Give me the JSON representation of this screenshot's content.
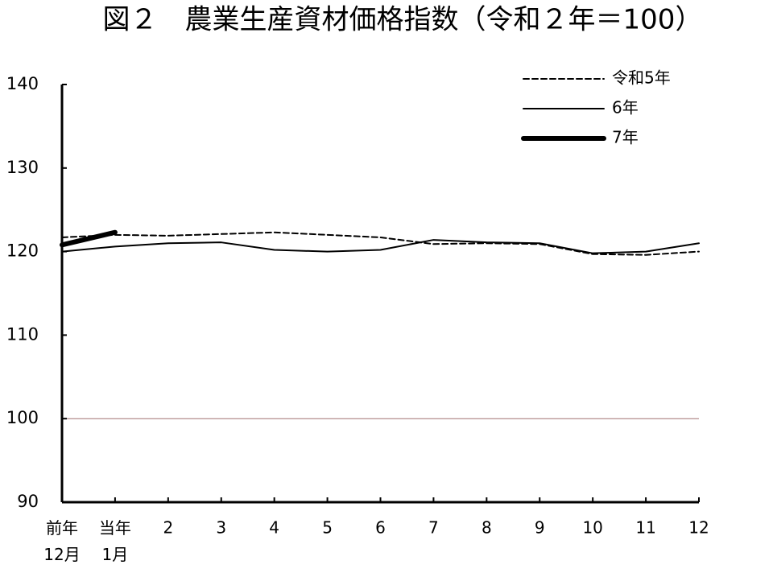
{
  "chart_data": {
    "type": "line",
    "title": "図２　農業生産資材価格指数（令和２年＝100）",
    "categories": [
      "前年\n12月",
      "当年\n1月",
      "2",
      "3",
      "4",
      "5",
      "6",
      "7",
      "8",
      "9",
      "10",
      "11",
      "12"
    ],
    "series": [
      {
        "name": "令和5年",
        "color": "#000000",
        "style": "dashed",
        "width": 2,
        "values": [
          121.7,
          122.0,
          121.9,
          122.1,
          122.3,
          122.0,
          121.7,
          120.9,
          121.0,
          120.9,
          119.7,
          119.6,
          120.0
        ]
      },
      {
        "name": "6年",
        "color": "#000000",
        "style": "solid",
        "width": 2,
        "values": [
          120.0,
          120.6,
          121.0,
          121.1,
          120.2,
          120.0,
          120.2,
          121.4,
          121.1,
          121.0,
          119.8,
          120.0,
          121.0
        ]
      },
      {
        "name": "7年",
        "color": "#000000",
        "style": "solid",
        "width": 6,
        "values": [
          120.8,
          122.3,
          null,
          null,
          null,
          null,
          null,
          null,
          null,
          null,
          null,
          null,
          null
        ]
      }
    ],
    "ylim": [
      90,
      140
    ],
    "yticks": [
      90,
      100,
      110,
      120,
      130,
      140
    ],
    "reference_line": 100,
    "reference_color": "#a07070",
    "legend": "top-right"
  }
}
